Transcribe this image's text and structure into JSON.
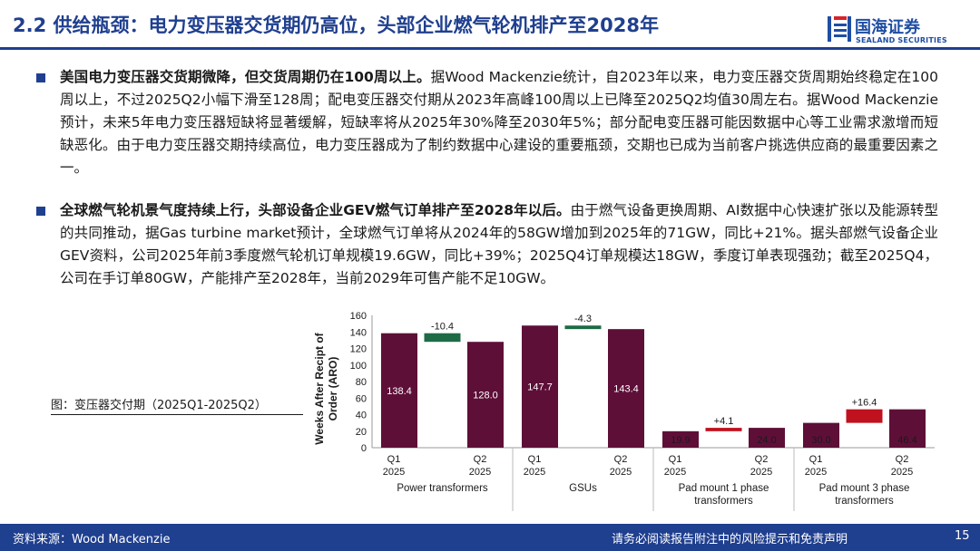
{
  "header": {
    "title": "2.2 供给瓶颈：电力变压器交货期仍高位，头部企业燃气轮机排产至2028年",
    "logo_cn": "国海证券",
    "logo_en": "SEALAND SECURITIES"
  },
  "paragraphs": [
    {
      "lead": "美国电力变压器交货期微降，但交货周期仍在100周以上。",
      "body": "据Wood Mackenzie统计，自2023年以来，电力变压器交货周期始终稳定在100周以上，不过2025Q2小幅下滑至128周；配电变压器交付期从2023年高峰100周以上已降至2025Q2均值30周左右。据Wood Mackenzie预计，未来5年电力变压器短缺将显著缓解，短缺率将从2025年30%降至2030年5%；部分配电变压器可能因数据中心等工业需求激增而短缺恶化。由于电力变压器交期持续高位，电力变压器成为了制约数据中心建设的重要瓶颈，交期也已成为当前客户挑选供应商的最重要因素之一。"
    },
    {
      "lead": "全球燃气轮机景气度持续上行，头部设备企业GEV燃气订单排产至2028年以后。",
      "body": "由于燃气设备更换周期、AI数据中心快速扩张以及能源转型的共同推动，据Gas turbine market预计，全球燃气订单将从2024年的58GW增加到2025年的71GW，同比+21%。据头部燃气设备企业GEV资料，公司2025年前3季度燃气轮机订单规模19.6GW，同比+39%；2025Q4订单规模达18GW，季度订单表现强劲；截至2025Q4，公司在手订单80GW，产能排产至2028年，当前2029年可售产能不足10GW。"
    }
  ],
  "caption": "图：变压器交付期（2025Q1-2025Q2）",
  "footer": {
    "source": "资料来源：Wood Mackenzie",
    "disclaimer": "请务必阅读报告附注中的风险提示和免责声明",
    "page": "15"
  },
  "colors": {
    "brand": "#1f3f8f",
    "bar": "#5e0f38",
    "decrease": "#1e6b45",
    "increase": "#c0111f"
  },
  "chart_data": {
    "type": "bar",
    "ylabel": "Weeks After Recipt of Order (ARO)",
    "ylim": [
      0,
      160
    ],
    "yticks": [
      0,
      20,
      40,
      60,
      80,
      100,
      120,
      140,
      160
    ],
    "groups": [
      {
        "name": "Power transformers",
        "q1": 138.4,
        "q2": 128.0,
        "delta": -10.4,
        "delta_label": "-10.4"
      },
      {
        "name": "GSUs",
        "q1": 147.7,
        "q2": 143.4,
        "delta": -4.3,
        "delta_label": "-4.3"
      },
      {
        "name": "Pad mount 1 phase transformers",
        "q1": 19.9,
        "q2": 24.0,
        "delta": 4.1,
        "delta_label": "+4.1"
      },
      {
        "name": "Pad mount 3 phase transformers",
        "q1": 30.0,
        "q2": 46.4,
        "delta": 16.4,
        "delta_label": "+16.4"
      }
    ],
    "period_labels": [
      "Q1 2025",
      "Q2 2025"
    ]
  }
}
